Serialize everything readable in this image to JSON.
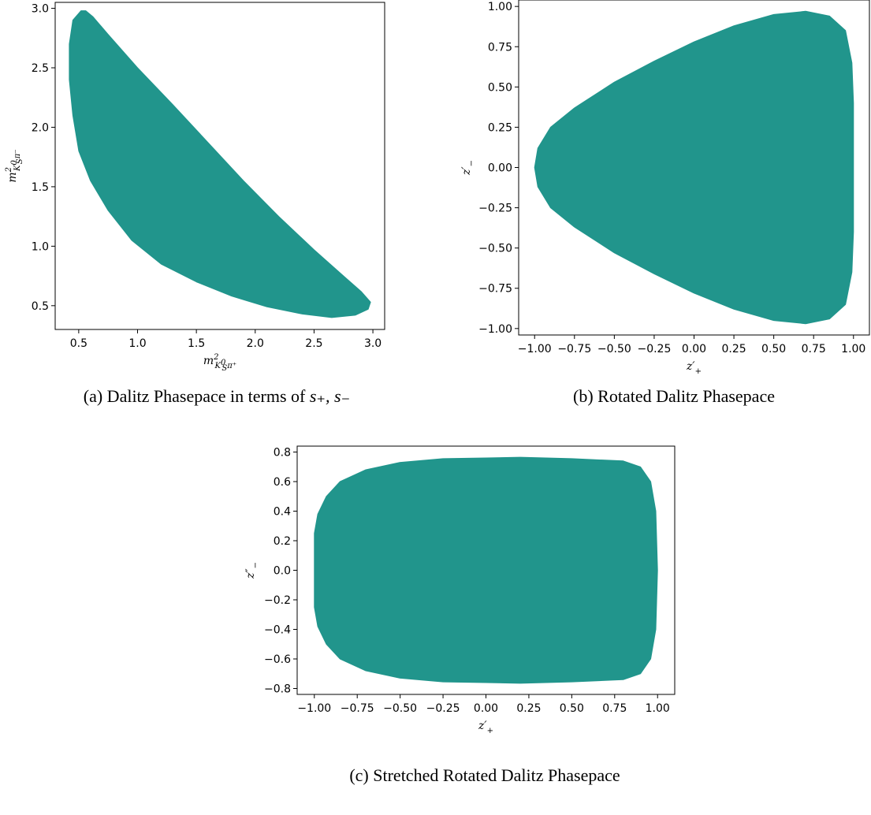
{
  "colors": {
    "region": "#21958c",
    "frame": "#000000"
  },
  "chart_data": [
    {
      "type": "area",
      "id": "a",
      "caption_prefix": "(a) Dalitz Phasepace in terms of ",
      "caption_math": "s₊, s₋",
      "xlabel": {
        "base": "m",
        "sup": "2",
        "sub": "K",
        "subsup": "0",
        "subsub": "S",
        "tail": "π⁺"
      },
      "ylabel": {
        "base": "m",
        "sup": "2",
        "sub": "K",
        "subsup": "0",
        "subsub": "S",
        "tail": "π⁻"
      },
      "xlim": [
        0.3,
        3.1
      ],
      "ylim": [
        0.3,
        3.05
      ],
      "xticks": [
        0.5,
        1.0,
        1.5,
        2.0,
        2.5,
        3.0
      ],
      "xtick_labels": [
        "0.5",
        "1.0",
        "1.5",
        "2.0",
        "2.5",
        "3.0"
      ],
      "yticks": [
        0.5,
        1.0,
        1.5,
        2.0,
        2.5,
        3.0
      ],
      "ytick_labels": [
        "0.5",
        "1.0",
        "1.5",
        "2.0",
        "2.5",
        "3.0"
      ],
      "boundary": [
        [
          0.52,
          2.98
        ],
        [
          0.45,
          2.9
        ],
        [
          0.42,
          2.7
        ],
        [
          0.42,
          2.4
        ],
        [
          0.45,
          2.1
        ],
        [
          0.5,
          1.8
        ],
        [
          0.6,
          1.55
        ],
        [
          0.75,
          1.3
        ],
        [
          0.95,
          1.05
        ],
        [
          1.2,
          0.85
        ],
        [
          1.5,
          0.7
        ],
        [
          1.8,
          0.58
        ],
        [
          2.1,
          0.49
        ],
        [
          2.4,
          0.43
        ],
        [
          2.65,
          0.4
        ],
        [
          2.85,
          0.42
        ],
        [
          2.96,
          0.47
        ],
        [
          2.98,
          0.53
        ],
        [
          2.9,
          0.62
        ],
        [
          2.75,
          0.75
        ],
        [
          2.5,
          0.97
        ],
        [
          2.2,
          1.25
        ],
        [
          1.9,
          1.55
        ],
        [
          1.6,
          1.87
        ],
        [
          1.3,
          2.19
        ],
        [
          1.0,
          2.5
        ],
        [
          0.75,
          2.78
        ],
        [
          0.62,
          2.93
        ],
        [
          0.56,
          2.98
        ]
      ]
    },
    {
      "type": "area",
      "id": "b",
      "caption_prefix": "(b) Rotated Dalitz Phasepace",
      "caption_math": "",
      "xlabel": {
        "base": "z′",
        "sub": "+"
      },
      "ylabel": {
        "base": "z′",
        "sub": "−"
      },
      "xlim": [
        -1.1,
        1.1
      ],
      "ylim": [
        -1.04,
        1.04
      ],
      "xticks": [
        -1.0,
        -0.75,
        -0.5,
        -0.25,
        0.0,
        0.25,
        0.5,
        0.75,
        1.0
      ],
      "xtick_labels": [
        "−1.00",
        "−0.75",
        "−0.50",
        "−0.25",
        "0.00",
        "0.25",
        "0.50",
        "0.75",
        "1.00"
      ],
      "yticks": [
        -1.0,
        -0.75,
        -0.5,
        -0.25,
        0.0,
        0.25,
        0.5,
        0.75,
        1.0
      ],
      "ytick_labels": [
        "−1.00",
        "−0.75",
        "−0.50",
        "−0.25",
        "0.00",
        "0.25",
        "0.50",
        "0.75",
        "1.00"
      ],
      "boundary": [
        [
          -1.0,
          0.0
        ],
        [
          -0.98,
          0.12
        ],
        [
          -0.9,
          0.25
        ],
        [
          -0.75,
          0.37
        ],
        [
          -0.5,
          0.53
        ],
        [
          -0.25,
          0.66
        ],
        [
          0.0,
          0.78
        ],
        [
          0.25,
          0.88
        ],
        [
          0.5,
          0.95
        ],
        [
          0.7,
          0.97
        ],
        [
          0.85,
          0.94
        ],
        [
          0.95,
          0.85
        ],
        [
          0.99,
          0.65
        ],
        [
          1.0,
          0.4
        ],
        [
          1.0,
          0.0
        ],
        [
          1.0,
          -0.4
        ],
        [
          0.99,
          -0.65
        ],
        [
          0.95,
          -0.85
        ],
        [
          0.85,
          -0.94
        ],
        [
          0.7,
          -0.97
        ],
        [
          0.5,
          -0.95
        ],
        [
          0.25,
          -0.88
        ],
        [
          0.0,
          -0.78
        ],
        [
          -0.25,
          -0.66
        ],
        [
          -0.5,
          -0.53
        ],
        [
          -0.75,
          -0.37
        ],
        [
          -0.9,
          -0.25
        ],
        [
          -0.98,
          -0.12
        ]
      ]
    },
    {
      "type": "area",
      "id": "c",
      "caption_prefix": "(c) Stretched Rotated Dalitz Phasepace",
      "caption_math": "",
      "xlabel": {
        "base": "z′",
        "sub": "+"
      },
      "ylabel": {
        "base": "z″",
        "sub": "−"
      },
      "xlim": [
        -1.1,
        1.1
      ],
      "ylim": [
        -0.84,
        0.84
      ],
      "xticks": [
        -1.0,
        -0.75,
        -0.5,
        -0.25,
        0.0,
        0.25,
        0.5,
        0.75,
        1.0
      ],
      "xtick_labels": [
        "−1.00",
        "−0.75",
        "−0.50",
        "−0.25",
        "0.00",
        "0.25",
        "0.50",
        "0.75",
        "1.00"
      ],
      "yticks": [
        -0.8,
        -0.6,
        -0.4,
        -0.2,
        0.0,
        0.2,
        0.4,
        0.6,
        0.8
      ],
      "ytick_labels": [
        "−0.8",
        "−0.6",
        "−0.4",
        "−0.2",
        "0.0",
        "0.2",
        "0.4",
        "0.6",
        "0.8"
      ],
      "boundary": [
        [
          -1.0,
          0.0
        ],
        [
          -1.0,
          0.25
        ],
        [
          -0.98,
          0.38
        ],
        [
          -0.93,
          0.5
        ],
        [
          -0.85,
          0.6
        ],
        [
          -0.7,
          0.68
        ],
        [
          -0.5,
          0.73
        ],
        [
          -0.25,
          0.755
        ],
        [
          0.0,
          0.76
        ],
        [
          0.2,
          0.765
        ],
        [
          0.5,
          0.755
        ],
        [
          0.8,
          0.74
        ],
        [
          0.9,
          0.7
        ],
        [
          0.96,
          0.6
        ],
        [
          0.99,
          0.4
        ],
        [
          1.0,
          0.0
        ],
        [
          0.99,
          -0.4
        ],
        [
          0.96,
          -0.6
        ],
        [
          0.9,
          -0.7
        ],
        [
          0.8,
          -0.74
        ],
        [
          0.5,
          -0.755
        ],
        [
          0.2,
          -0.765
        ],
        [
          0.0,
          -0.76
        ],
        [
          -0.25,
          -0.755
        ],
        [
          -0.5,
          -0.73
        ],
        [
          -0.7,
          -0.68
        ],
        [
          -0.85,
          -0.6
        ],
        [
          -0.93,
          -0.5
        ],
        [
          -0.98,
          -0.38
        ],
        [
          -1.0,
          -0.25
        ]
      ]
    }
  ]
}
